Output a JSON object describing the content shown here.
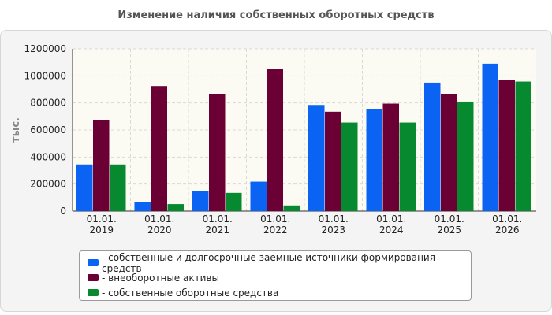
{
  "chart_data": {
    "type": "bar",
    "title": "Изменение наличия собственных оборотных средств",
    "ylabel": "тыс.",
    "xlabel": "",
    "ylim": [
      0,
      1200000
    ],
    "yticks": [
      "0",
      "200000",
      "400000",
      "600000",
      "800000",
      "1000000",
      "1200000"
    ],
    "categories": [
      "01.01.\n2019",
      "01.01.\n2020",
      "01.01.\n2021",
      "01.01.\n2022",
      "01.01.\n2023",
      "01.01.\n2024",
      "01.01.\n2025",
      "01.01.\n2026"
    ],
    "grid": true,
    "legend_position": "bottom",
    "series": [
      {
        "name": "- собственные и долгосрочные заемные источники формирования средств",
        "color": "#0a63f2",
        "values": [
          345000,
          65000,
          148000,
          218000,
          785000,
          755000,
          950000,
          1090000
        ]
      },
      {
        "name": "- внеоборотные активы",
        "color": "#6b0035",
        "values": [
          670000,
          925000,
          868000,
          1050000,
          735000,
          795000,
          868000,
          968000
        ]
      },
      {
        "name": "- собственные оборотные средства",
        "color": "#078a2f",
        "values": [
          345000,
          52000,
          135000,
          42000,
          655000,
          655000,
          810000,
          958000
        ]
      }
    ]
  }
}
